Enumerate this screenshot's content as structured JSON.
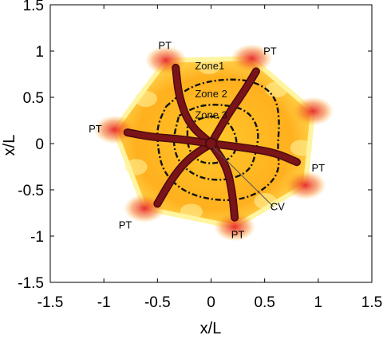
{
  "chart_data": {
    "type": "heatmap",
    "title": "",
    "xlabel": "x/L",
    "ylabel": "x/L",
    "xlim": [
      -1.5,
      1.5
    ],
    "ylim": [
      -1.5,
      1.5
    ],
    "xticks": [
      "-1.5",
      "-1",
      "-0.5",
      "0",
      "0.5",
      "1",
      "1.5"
    ],
    "yticks": [
      "1.5",
      "1",
      "0.5",
      "0",
      "-0.5",
      "-1",
      "-1.5"
    ],
    "grid": false,
    "colors": {
      "background": "#ffb01e",
      "hot": "#e8242a",
      "bright": "#fff4a0",
      "vessel": "#7a1418",
      "zone_line": "#111111"
    },
    "lobule": {
      "hexagon_vertices": [
        [
          -0.42,
          0.9
        ],
        [
          0.38,
          0.92
        ],
        [
          0.95,
          0.35
        ],
        [
          0.88,
          -0.45
        ],
        [
          0.22,
          -0.9
        ],
        [
          -0.62,
          -0.7
        ],
        [
          -0.9,
          0.15
        ]
      ]
    },
    "annotations": [
      {
        "label": "PT",
        "x": -0.43,
        "y": 1.02
      },
      {
        "label": "PT",
        "x": 0.55,
        "y": 0.96
      },
      {
        "label": "PT",
        "x": -1.08,
        "y": 0.12
      },
      {
        "label": "PT",
        "x": 1.0,
        "y": -0.3
      },
      {
        "label": "PT",
        "x": -0.8,
        "y": -0.92
      },
      {
        "label": "PT",
        "x": 0.25,
        "y": -1.02
      },
      {
        "label": "CV",
        "x": 0.62,
        "y": -0.72
      }
    ],
    "zones": [
      {
        "label": "Zone1",
        "label_x": -0.15,
        "label_y": 0.8,
        "path": [
          [
            -0.42,
            0.4
          ],
          [
            -0.2,
            0.62
          ],
          [
            0.1,
            0.7
          ],
          [
            0.4,
            0.68
          ],
          [
            0.6,
            0.52
          ],
          [
            0.64,
            0.25
          ],
          [
            0.62,
            -0.05
          ],
          [
            0.64,
            -0.3
          ],
          [
            0.5,
            -0.5
          ],
          [
            0.25,
            -0.62
          ],
          [
            -0.05,
            -0.6
          ],
          [
            -0.28,
            -0.5
          ],
          [
            -0.45,
            -0.3
          ],
          [
            -0.5,
            -0.02
          ],
          [
            -0.5,
            0.2
          ],
          [
            -0.42,
            0.4
          ]
        ]
      },
      {
        "label": "Zone 2",
        "label_x": -0.15,
        "label_y": 0.5,
        "path": [
          [
            -0.3,
            0.3
          ],
          [
            -0.1,
            0.42
          ],
          [
            0.15,
            0.42
          ],
          [
            0.35,
            0.35
          ],
          [
            0.45,
            0.15
          ],
          [
            0.42,
            -0.1
          ],
          [
            0.36,
            -0.3
          ],
          [
            0.15,
            -0.4
          ],
          [
            -0.1,
            -0.38
          ],
          [
            -0.3,
            -0.22
          ],
          [
            -0.36,
            0.02
          ],
          [
            -0.3,
            0.3
          ]
        ]
      },
      {
        "label": "Zone 3",
        "label_x": -0.15,
        "label_y": 0.27,
        "path": [
          [
            -0.22,
            0.2
          ],
          [
            -0.05,
            0.3
          ],
          [
            0.1,
            0.28
          ],
          [
            0.2,
            0.18
          ],
          [
            0.25,
            0.0
          ],
          [
            0.2,
            -0.15
          ],
          [
            0.05,
            -0.22
          ],
          [
            -0.12,
            -0.2
          ],
          [
            -0.22,
            -0.05
          ],
          [
            -0.22,
            0.2
          ]
        ]
      }
    ],
    "vessels": [
      {
        "path": [
          [
            0.0,
            0.0
          ],
          [
            -0.2,
            0.2
          ],
          [
            -0.3,
            0.5
          ],
          [
            -0.33,
            0.82
          ]
        ]
      },
      {
        "path": [
          [
            0.0,
            0.0
          ],
          [
            0.15,
            0.3
          ],
          [
            0.3,
            0.55
          ],
          [
            0.42,
            0.78
          ]
        ]
      },
      {
        "path": [
          [
            0.0,
            0.0
          ],
          [
            0.35,
            -0.05
          ],
          [
            0.6,
            -0.1
          ],
          [
            0.8,
            -0.2
          ]
        ]
      },
      {
        "path": [
          [
            0.0,
            0.0
          ],
          [
            0.15,
            -0.25
          ],
          [
            0.2,
            -0.55
          ],
          [
            0.22,
            -0.8
          ]
        ]
      },
      {
        "path": [
          [
            0.0,
            0.0
          ],
          [
            -0.2,
            -0.15
          ],
          [
            -0.35,
            -0.35
          ],
          [
            -0.5,
            -0.65
          ]
        ]
      },
      {
        "path": [
          [
            0.0,
            0.0
          ],
          [
            -0.3,
            0.05
          ],
          [
            -0.55,
            0.07
          ],
          [
            -0.78,
            0.12
          ]
        ]
      }
    ],
    "central_vein": {
      "x": 0.0,
      "y": 0.0,
      "radius": 0.05
    },
    "cv_pointer": {
      "from": [
        0.58,
        -0.68
      ],
      "to": [
        0.02,
        -0.04
      ]
    }
  }
}
